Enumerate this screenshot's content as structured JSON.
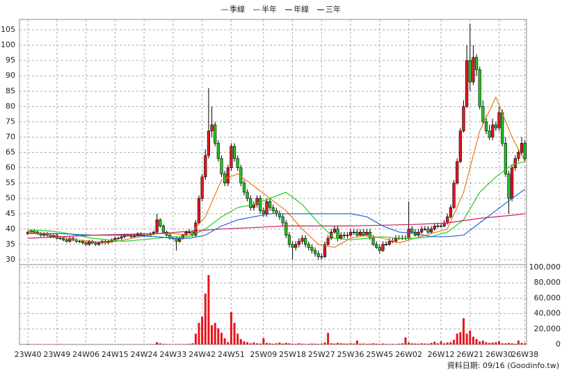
{
  "chart_data": {
    "type": "candlestick",
    "xlim": [
      -2.6,
      154.5
    ],
    "xticks": [
      {
        "value": 0,
        "label": "23W40"
      },
      {
        "value": 9,
        "label": "23W49"
      },
      {
        "value": 18,
        "label": "24W06"
      },
      {
        "value": 27,
        "label": "24W15"
      },
      {
        "value": 36,
        "label": "24W24"
      },
      {
        "value": 45,
        "label": "24W33"
      },
      {
        "value": 54,
        "label": "24W42"
      },
      {
        "value": 63,
        "label": "24W51"
      },
      {
        "value": 73,
        "label": "25W09"
      },
      {
        "value": 82,
        "label": "25W18"
      },
      {
        "value": 91,
        "label": "25W27"
      },
      {
        "value": 100,
        "label": "25W36"
      },
      {
        "value": 109,
        "label": "25W45"
      },
      {
        "value": 118,
        "label": "26W02"
      },
      {
        "value": 128,
        "label": "26W12"
      },
      {
        "value": 137,
        "label": "26W21"
      },
      {
        "value": 146,
        "label": "26W30"
      },
      {
        "value": 154,
        "label": "26W38"
      }
    ],
    "ylim": [
      28.4,
      108.4
    ],
    "yticks": [
      30,
      35,
      40,
      45,
      50,
      55,
      60,
      65,
      70,
      75,
      80,
      85,
      90,
      95,
      100,
      105
    ],
    "grid": true,
    "up_color": "#e8141c",
    "down_color": "#22c522",
    "candles": {
      "x": [
        0,
        1,
        2,
        3,
        4,
        5,
        6,
        7,
        8,
        9,
        10,
        11,
        12,
        13,
        14,
        15,
        16,
        17,
        18,
        19,
        20,
        21,
        22,
        23,
        24,
        25,
        26,
        27,
        28,
        29,
        30,
        31,
        32,
        33,
        34,
        35,
        36,
        37,
        38,
        39,
        40,
        41,
        42,
        43,
        44,
        45,
        46,
        47,
        48,
        49,
        50,
        51,
        52,
        53,
        54,
        55,
        56,
        57,
        58,
        59,
        60,
        61,
        62,
        63,
        64,
        65,
        66,
        67,
        68,
        69,
        70,
        71,
        72,
        73,
        74,
        75,
        76,
        77,
        78,
        79,
        80,
        81,
        82,
        83,
        84,
        85,
        86,
        87,
        88,
        89,
        90,
        91,
        92,
        93,
        94,
        95,
        96,
        97,
        98,
        99,
        100,
        101,
        102,
        103,
        104,
        105,
        106,
        107,
        108,
        109,
        110,
        111,
        112,
        113,
        114,
        115,
        116,
        117,
        118,
        119,
        120,
        121,
        122,
        123,
        124,
        125,
        126,
        127,
        128,
        129,
        130,
        131,
        132,
        133,
        134,
        135,
        136,
        137,
        138,
        139,
        140,
        141,
        142,
        143,
        144,
        145,
        146,
        147,
        148,
        149,
        150,
        151,
        152,
        153,
        154
      ],
      "open": [
        38.5,
        39,
        39.5,
        39,
        38.5,
        38,
        38.5,
        38,
        37.5,
        38,
        37,
        37,
        36.5,
        36,
        37,
        36.5,
        36,
        36,
        35.5,
        35,
        36,
        35.5,
        35,
        35.5,
        36,
        35.5,
        36,
        36.5,
        37,
        37,
        37.5,
        38,
        38,
        37.5,
        38,
        38.5,
        38,
        38,
        38,
        38.5,
        39,
        43,
        41,
        39,
        38,
        37,
        37,
        36,
        37,
        38,
        39,
        39,
        38,
        42,
        50,
        57,
        64,
        72,
        74,
        68,
        63,
        58,
        55,
        60,
        67,
        63,
        60,
        55,
        52,
        50,
        47,
        48,
        50,
        46,
        45,
        49,
        47,
        46,
        45,
        44,
        42,
        38,
        35,
        34,
        35,
        36,
        37,
        35,
        34,
        33,
        32,
        31,
        31,
        35,
        37,
        39,
        40,
        37,
        38,
        38,
        38,
        39,
        39,
        38,
        39,
        38,
        39,
        37,
        35,
        34,
        33,
        35,
        35,
        36,
        36,
        37,
        37,
        37,
        37,
        40,
        39,
        38,
        39,
        40,
        40,
        39,
        40,
        41,
        41,
        41,
        42,
        44,
        47,
        55,
        62,
        72,
        80,
        95,
        88,
        96,
        92,
        80,
        75,
        72,
        70,
        74,
        73,
        78,
        68,
        58,
        50,
        60,
        63,
        65,
        68
      ],
      "high": [
        39.5,
        40,
        40,
        39.5,
        39,
        39,
        39,
        38.5,
        38.5,
        38.5,
        37.5,
        37.5,
        37,
        37.5,
        37.5,
        37,
        36.5,
        36.5,
        36,
        36.5,
        36.5,
        36,
        36,
        36.5,
        36.5,
        36.5,
        37,
        37.5,
        37.5,
        38,
        38.5,
        38.5,
        38.5,
        38.5,
        39,
        39,
        38.5,
        38.5,
        39,
        39.5,
        45,
        43.5,
        41.5,
        39.5,
        38.5,
        37.5,
        37.5,
        37.5,
        38.5,
        39.5,
        40,
        39.5,
        43,
        51,
        58,
        66,
        86,
        80,
        75,
        69,
        64,
        59,
        61,
        68,
        68,
        64,
        61,
        56,
        53,
        51,
        49,
        51,
        51,
        47,
        50,
        50,
        48,
        47,
        46,
        45,
        43,
        39,
        36,
        36,
        37,
        38,
        38,
        36,
        35,
        34,
        33,
        32,
        36,
        38,
        40,
        41,
        41,
        39,
        39,
        39,
        40,
        40,
        40,
        40,
        40,
        40,
        40,
        38,
        36,
        35,
        36,
        36,
        37,
        37,
        38,
        38,
        38,
        38,
        49,
        41,
        40,
        40,
        41,
        41,
        41,
        41,
        42,
        42,
        42,
        43,
        45,
        48,
        56,
        63,
        73,
        82,
        100,
        107,
        100,
        97,
        93,
        82,
        77,
        74,
        76,
        75,
        80,
        79,
        70,
        59,
        61,
        64,
        66,
        70,
        69
      ],
      "low": [
        38,
        38.5,
        38.5,
        38,
        37.5,
        37.5,
        37.5,
        37,
        37,
        36.5,
        36.5,
        36,
        35.5,
        35.5,
        36,
        35.5,
        35.5,
        35,
        34.5,
        34.5,
        35,
        34.5,
        34.5,
        35,
        35,
        35,
        35.5,
        36,
        36.5,
        36.5,
        37,
        37.5,
        37,
        37,
        37.5,
        38,
        37.5,
        37.5,
        37.5,
        38,
        38.5,
        40.5,
        38.5,
        37.5,
        36.5,
        36.5,
        33,
        35.5,
        36.5,
        37.5,
        38.5,
        37.5,
        37.5,
        41.5,
        49,
        56,
        63,
        70,
        67,
        62,
        57,
        54,
        54,
        59,
        62,
        59,
        54,
        51,
        49,
        46,
        46,
        47,
        45,
        44,
        44,
        46,
        45,
        44,
        43,
        41,
        37,
        34,
        30,
        33,
        34,
        35,
        34,
        33,
        32,
        31,
        30,
        30,
        30.5,
        34.5,
        36.5,
        38.5,
        36,
        36.5,
        37,
        37,
        37.5,
        38,
        37.5,
        37.5,
        37.5,
        37.5,
        36.5,
        34.5,
        33.5,
        32,
        32.5,
        34.5,
        34.5,
        35.5,
        35.5,
        36.5,
        36.5,
        36.5,
        36.5,
        38.5,
        37.5,
        37.5,
        38.5,
        39.5,
        38.5,
        38.5,
        39.5,
        40.5,
        40.5,
        40.5,
        41.5,
        43.5,
        46.5,
        54.5,
        61.5,
        71.5,
        79.5,
        85,
        87,
        90,
        79,
        74,
        71,
        69,
        69,
        72,
        72,
        67,
        57,
        45,
        49,
        59,
        62,
        64,
        62
      ],
      "close": [
        39,
        39.5,
        39,
        38.5,
        38,
        38.5,
        38,
        37.5,
        38,
        37,
        37,
        36.5,
        36,
        37,
        36.5,
        36,
        36,
        35.5,
        35,
        36,
        35.5,
        35,
        35.5,
        36,
        35.5,
        36,
        36.5,
        37,
        37,
        37.5,
        38,
        38,
        37.5,
        38,
        38.5,
        38,
        38,
        38,
        38.5,
        39,
        43,
        41,
        39,
        38,
        37,
        37,
        36,
        37,
        38,
        39,
        39,
        38,
        42,
        50,
        57,
        64,
        72,
        74,
        68,
        63,
        58,
        55,
        60,
        67,
        63,
        60,
        55,
        52,
        50,
        47,
        48,
        50,
        46,
        45,
        49,
        47,
        46,
        45,
        44,
        42,
        38,
        35,
        34,
        35,
        36,
        37,
        35,
        34,
        33,
        32,
        31,
        31,
        35,
        37,
        39,
        40,
        37,
        38,
        38,
        38,
        39,
        39,
        38,
        39,
        38,
        39,
        37,
        35,
        34,
        33,
        35,
        35,
        36,
        36,
        37,
        37,
        37,
        37,
        40,
        39,
        38,
        39,
        40,
        40,
        39,
        40,
        41,
        41,
        41,
        42,
        44,
        47,
        55,
        62,
        72,
        80,
        95,
        88,
        96,
        92,
        80,
        75,
        72,
        70,
        74,
        73,
        78,
        68,
        58,
        50,
        60,
        63,
        65,
        68,
        63
      ]
    },
    "series": [
      {
        "name": "季線",
        "color": "#e87a1e",
        "x": [
          0,
          5,
          10,
          15,
          20,
          25,
          30,
          35,
          40,
          45,
          50,
          55,
          60,
          65,
          70,
          75,
          80,
          85,
          90,
          95,
          100,
          105,
          110,
          115,
          120,
          125,
          130,
          135,
          140,
          145,
          150,
          154
        ],
        "values": [
          39,
          38.5,
          37.5,
          36.5,
          36,
          35.5,
          36.5,
          37.5,
          38.5,
          38.5,
          38,
          44,
          56,
          58,
          54,
          50,
          46,
          40,
          35,
          34,
          37,
          38,
          37,
          35.5,
          37,
          38.5,
          40,
          52,
          72,
          83,
          70,
          62
        ]
      },
      {
        "name": "半年",
        "color": "#22cc22",
        "x": [
          0,
          5,
          10,
          15,
          20,
          25,
          30,
          35,
          40,
          45,
          50,
          55,
          60,
          65,
          70,
          75,
          80,
          85,
          90,
          95,
          100,
          105,
          110,
          115,
          120,
          125,
          130,
          135,
          140,
          145,
          150,
          154
        ],
        "values": [
          39.5,
          39.5,
          39,
          38,
          37,
          36.5,
          36,
          36.5,
          37,
          37.5,
          37.5,
          40,
          44,
          47,
          48,
          50,
          52,
          48,
          42,
          37,
          36.5,
          37,
          37.5,
          37,
          37,
          37.5,
          39,
          43,
          52,
          57,
          61,
          62
        ]
      },
      {
        "name": "年線",
        "color": "#1e64d2",
        "x": [
          0,
          10,
          20,
          30,
          40,
          45,
          50,
          55,
          60,
          65,
          70,
          75,
          80,
          90,
          100,
          105,
          110,
          115,
          120,
          125,
          130,
          135,
          140,
          145,
          150,
          154
        ],
        "values": [
          38.5,
          38.5,
          38,
          38,
          37.5,
          37,
          37,
          38,
          41,
          43,
          44,
          45,
          45,
          45,
          45,
          44,
          41,
          39,
          38.5,
          37.5,
          37.5,
          38,
          42,
          46,
          50,
          53
        ]
      },
      {
        "name": "三年",
        "color": "#c81e5a",
        "x": [
          0,
          20,
          40,
          60,
          80,
          100,
          120,
          130,
          140,
          150,
          154
        ],
        "values": [
          37,
          38,
          38.5,
          40,
          41,
          41,
          41.5,
          42,
          43.5,
          44.5,
          45
        ]
      }
    ],
    "volume": {
      "color": "#e8141c",
      "ylim": [
        0,
        103600
      ],
      "yticks": [
        0,
        {
          "value": 20000,
          "label": "20,000"
        },
        {
          "value": 40000,
          "label": "40,000"
        },
        {
          "value": 60000,
          "label": "60,000"
        },
        {
          "value": 80000,
          "label": "80,000"
        },
        {
          "value": 100000,
          "label": "100,000"
        }
      ],
      "values": [
        800,
        400,
        300,
        500,
        200,
        300,
        400,
        200,
        300,
        600,
        500,
        300,
        200,
        300,
        200,
        200,
        300,
        200,
        300,
        200,
        200,
        300,
        200,
        200,
        200,
        300,
        200,
        300,
        200,
        300,
        300,
        200,
        300,
        400,
        300,
        200,
        300,
        300,
        400,
        500,
        3000,
        1500,
        800,
        600,
        500,
        400,
        600,
        500,
        500,
        600,
        800,
        1500,
        14000,
        28000,
        36000,
        66000,
        90000,
        25000,
        28000,
        21000,
        15000,
        8000,
        3000,
        42000,
        28000,
        14000,
        7000,
        4000,
        3000,
        1500,
        2500,
        1500,
        1200,
        8000,
        2000,
        1500,
        1000,
        1500,
        2500,
        1200,
        2000,
        1500,
        1000,
        800,
        1500,
        1000,
        600,
        800,
        1200,
        1000,
        800,
        1200,
        2500,
        15000,
        1500,
        1200,
        2000,
        1500,
        1200,
        1000,
        1500,
        1200,
        5000,
        1000,
        1200,
        800,
        1000,
        1500,
        1000,
        800,
        1200,
        800,
        600,
        800,
        600,
        1000,
        1500,
        9000,
        2500,
        1500,
        1200,
        1000,
        1500,
        1200,
        1000,
        2000,
        3500,
        1500,
        4000,
        1500,
        2500,
        3000,
        6000,
        14000,
        16000,
        34000,
        14000,
        18000,
        10000,
        7000,
        4000,
        5000,
        3000,
        2000,
        2500,
        3000,
        4000,
        1500,
        1500,
        2000,
        1500,
        1000,
        5000,
        2000,
        1500
      ]
    },
    "footer": "資料日期: 09/16  (Goodinfo.tw)"
  }
}
